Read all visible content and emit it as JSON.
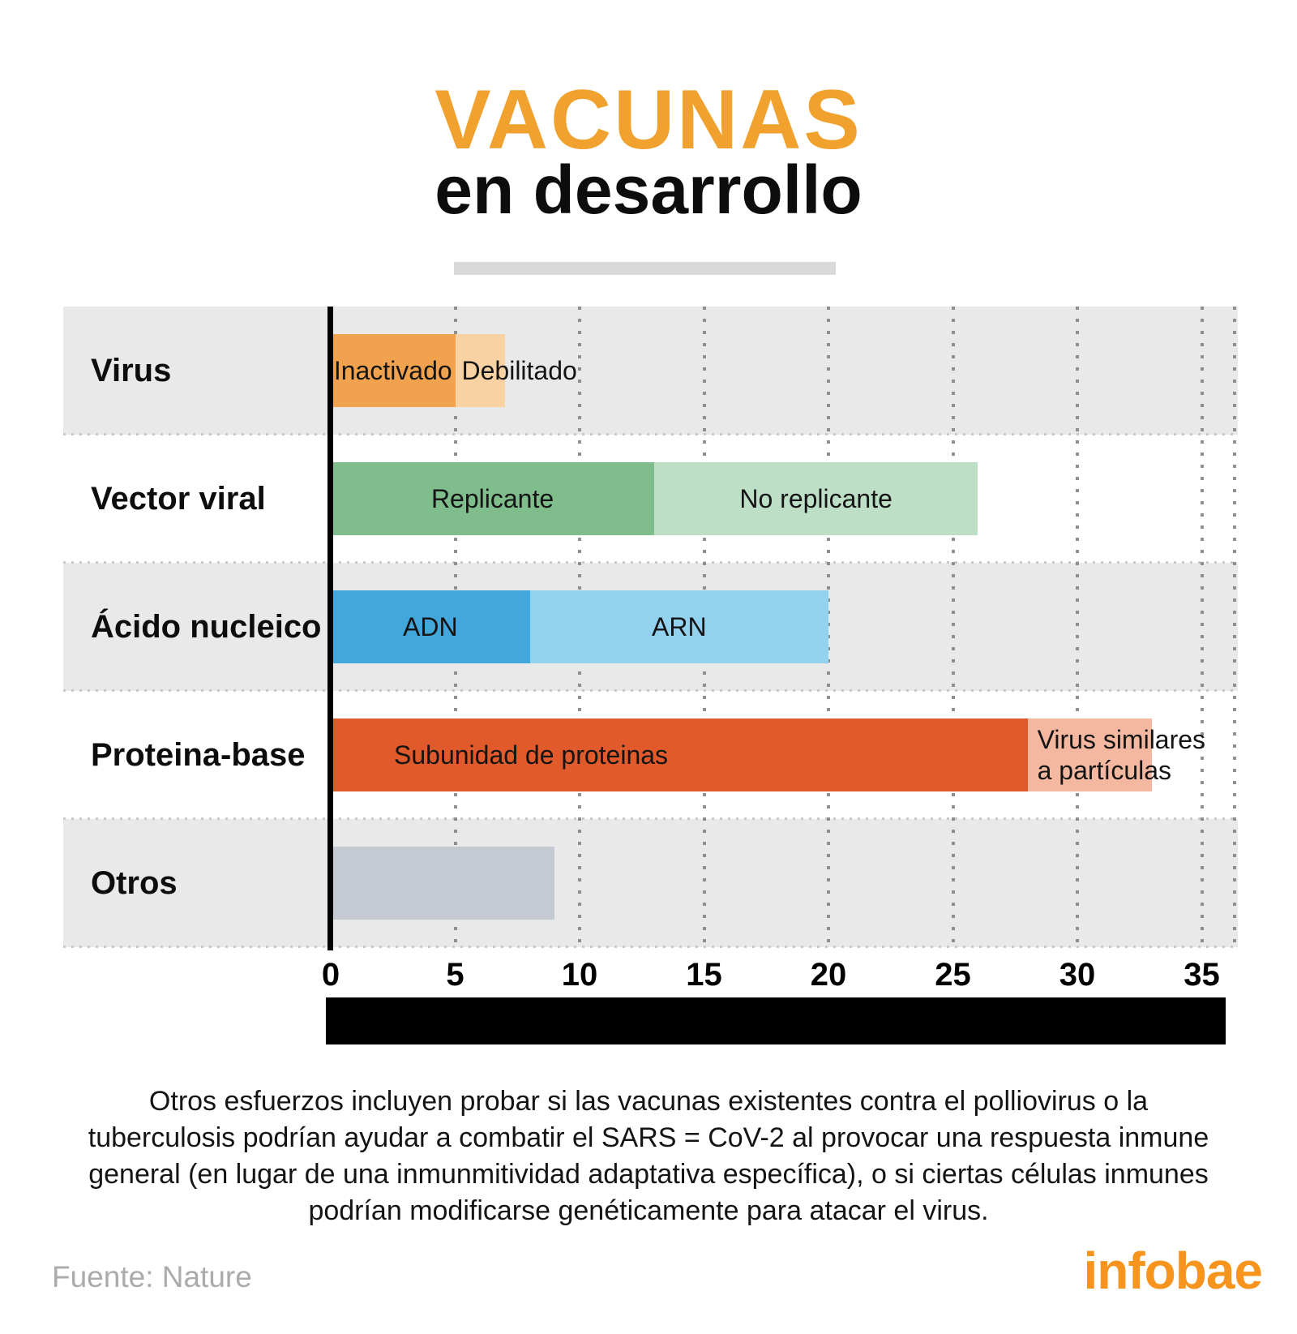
{
  "title": {
    "main": "VACUNAS",
    "sub": "en desarrollo"
  },
  "colors": {
    "title_orange": "#F1A12E",
    "brand_orange": "#F7941D",
    "band_gray": "#E9E9E9",
    "divider_gray": "#D9D9D9",
    "grid_dot": "#8F8F8F",
    "axis_black": "#000000",
    "source_gray": "#ABABAB",
    "text_black": "#141414"
  },
  "chart_data": {
    "type": "bar",
    "orientation": "horizontal",
    "stacked": true,
    "title": "VACUNAS en desarrollo",
    "xlabel": "",
    "ylabel": "",
    "xlim": [
      0,
      36.5
    ],
    "x_ticks": [
      0,
      5,
      10,
      15,
      20,
      25,
      30,
      35
    ],
    "grid": "dotted vertical gridlines every 5 units, dotted row separators",
    "legend": "labels drawn inside bar segments",
    "categories": [
      "Virus",
      "Vector viral",
      "Ácido nucleico",
      "Proteina-base",
      "Otros"
    ],
    "rows": [
      {
        "category": "Virus",
        "band": "gray",
        "total": 7,
        "segments": [
          {
            "label": "Inactivado",
            "value": 5,
            "color": "#F0A24E",
            "align": "center"
          },
          {
            "label": "Debilitado",
            "value": 2,
            "color": "#F8D2A3",
            "align": "left-overflow",
            "indent": 8
          }
        ]
      },
      {
        "category": "Vector viral",
        "band": "white",
        "total": 26,
        "segments": [
          {
            "label": "Replicante",
            "value": 13,
            "color": "#7FBD8D",
            "align": "center"
          },
          {
            "label": "No replicante",
            "value": 13,
            "color": "#BDDFC6",
            "align": "center"
          }
        ]
      },
      {
        "category": "Ácido nucleico",
        "band": "gray",
        "total": 20,
        "segments": [
          {
            "label": "ADN",
            "value": 8,
            "color": "#41A7DD",
            "align": "center"
          },
          {
            "label": "ARN",
            "value": 12,
            "color": "#93D2EF",
            "align": "center"
          }
        ]
      },
      {
        "category": "Proteina-base",
        "band": "white",
        "total": 33,
        "segments": [
          {
            "label": "Subunidad de proteinas",
            "value": 28,
            "color": "#E05A2B",
            "align": "left",
            "indent": 78
          },
          {
            "label": "Virus similares\na partículas",
            "value": 5,
            "color": "#F4B79F",
            "align": "left-overflow",
            "indent": 12
          }
        ]
      },
      {
        "category": "Otros",
        "band": "gray",
        "total": 9,
        "segments": [
          {
            "label": "",
            "value": 9,
            "color": "#C4C9D2",
            "align": "center"
          }
        ]
      }
    ]
  },
  "footnote": "Otros esfuerzos incluyen probar si las vacunas existentes contra el polliovirus o la\ntuberculosis podrían ayudar a combatir el SARS = CoV-2 al provocar una respuesta inmune\ngeneral (en lugar de una inmunmitividad adaptativa específica), o si ciertas células inmunes\npodrían modificarse genéticamente para atacar el virus.",
  "source": "Fuente: Nature",
  "brand": "infobae"
}
